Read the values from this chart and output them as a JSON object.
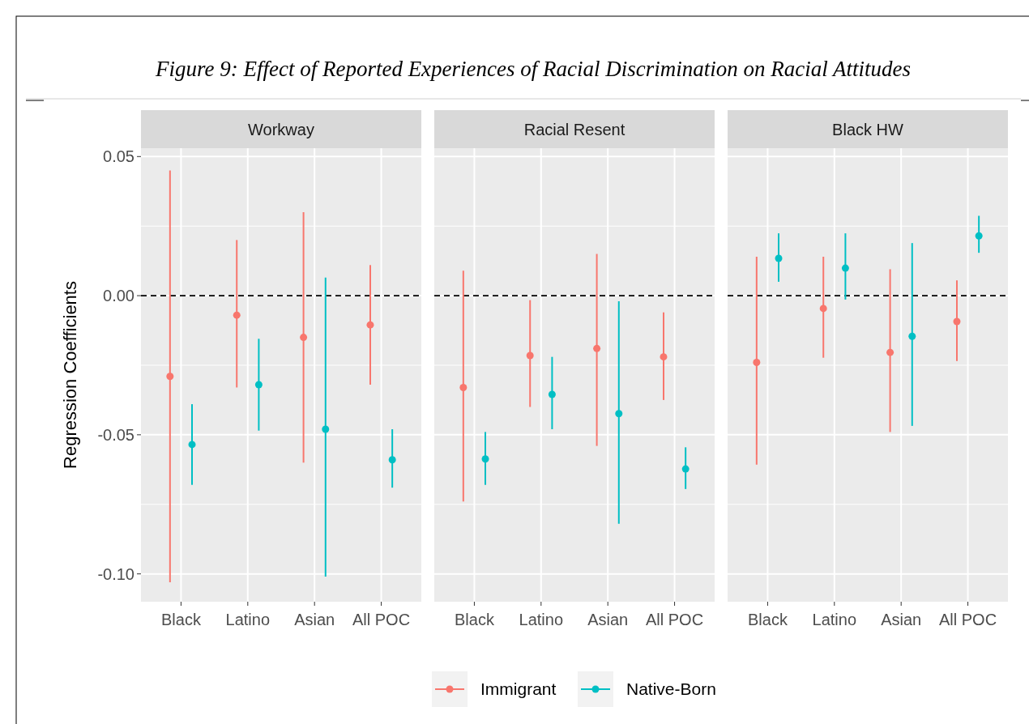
{
  "chart_data": [
    {
      "type": "scatter",
      "title": "Workway",
      "ylabel": "Regression Coefficients",
      "annotations": [
        "Figure 9: Effect of Reported Experiences of Racial Discrimination on Racial Attitudes"
      ],
      "categories": [
        "Black",
        "Latino",
        "Asian",
        "All POC"
      ],
      "ylim": [
        -0.11,
        0.053
      ],
      "yticks": [
        {
          "value": 0.05,
          "label": "0.05"
        },
        {
          "value": 0,
          "label": "0.00"
        },
        {
          "value": -0.05,
          "label": "-0.05"
        },
        {
          "value": -0.1,
          "label": "-0.10"
        }
      ],
      "grid": true,
      "marker": "circle",
      "legend": "bottom",
      "ref_lines": [
        {
          "axis": "y",
          "value": 0,
          "line_style": "dashed",
          "color": "#000000"
        }
      ],
      "series": [
        {
          "name": "Immigrant",
          "color": "#f8766d",
          "values": [
            -0.029,
            -0.007,
            -0.015,
            -0.0105
          ],
          "errors": [
            [
              -0.103,
              0.045
            ],
            [
              -0.033,
              0.02
            ],
            [
              -0.06,
              0.03
            ],
            [
              -0.032,
              0.011
            ]
          ]
        },
        {
          "name": "Native-Born",
          "color": "#00bfc4",
          "values": [
            -0.0535,
            -0.032,
            -0.048,
            -0.059
          ],
          "errors": [
            [
              -0.068,
              -0.039
            ],
            [
              -0.0485,
              -0.0155
            ],
            [
              -0.101,
              0.0065
            ],
            [
              -0.069,
              -0.048
            ]
          ]
        }
      ]
    },
    {
      "type": "scatter",
      "title": "Racial Resent",
      "categories": [
        "Black",
        "Latino",
        "Asian",
        "All POC"
      ],
      "ylim": [
        -0.11,
        0.053
      ],
      "yticks": [
        0.05,
        0,
        -0.05,
        -0.1
      ],
      "tick_labels": "x",
      "grid": true,
      "marker": "circle",
      "ref_lines": [
        {
          "axis": "y",
          "value": 0,
          "line_style": "dashed",
          "color": "#000000"
        }
      ],
      "series": [
        {
          "color": "#f8766d",
          "values": [
            -0.033,
            -0.0215,
            -0.019,
            -0.022
          ],
          "errors": [
            [
              -0.074,
              0.009
            ],
            [
              -0.04,
              -0.0016
            ],
            [
              -0.054,
              0.015
            ],
            [
              -0.0375,
              -0.006
            ]
          ]
        },
        {
          "color": "#00bfc4",
          "values": [
            -0.0587,
            -0.0355,
            -0.0424,
            -0.0623
          ],
          "errors": [
            [
              -0.068,
              -0.049
            ],
            [
              -0.048,
              -0.022
            ],
            [
              -0.082,
              -0.002
            ],
            [
              -0.0695,
              -0.0545
            ]
          ]
        }
      ]
    },
    {
      "type": "scatter",
      "title": "Black HW",
      "categories": [
        "Black",
        "Latino",
        "Asian",
        "All POC"
      ],
      "ylim": [
        -0.11,
        0.053
      ],
      "yticks": [
        0.05,
        0,
        -0.05,
        -0.1
      ],
      "tick_labels": "x",
      "grid": true,
      "marker": "circle",
      "ref_lines": [
        {
          "axis": "y",
          "value": 0,
          "line_style": "dashed",
          "color": "#000000"
        }
      ],
      "series": [
        {
          "color": "#f8766d",
          "values": [
            -0.024,
            -0.0046,
            -0.0204,
            -0.0093
          ],
          "errors": [
            [
              -0.0607,
              0.014
            ],
            [
              -0.0223,
              0.014
            ],
            [
              -0.049,
              0.0095
            ],
            [
              -0.0235,
              0.0055
            ]
          ]
        },
        {
          "color": "#00bfc4",
          "values": [
            0.0134,
            0.0099,
            -0.0146,
            0.0215
          ],
          "errors": [
            [
              0.005,
              0.0224
            ],
            [
              -0.0014,
              0.0224
            ],
            [
              -0.0468,
              0.0189
            ],
            [
              0.0154,
              0.0287
            ]
          ]
        }
      ]
    }
  ]
}
